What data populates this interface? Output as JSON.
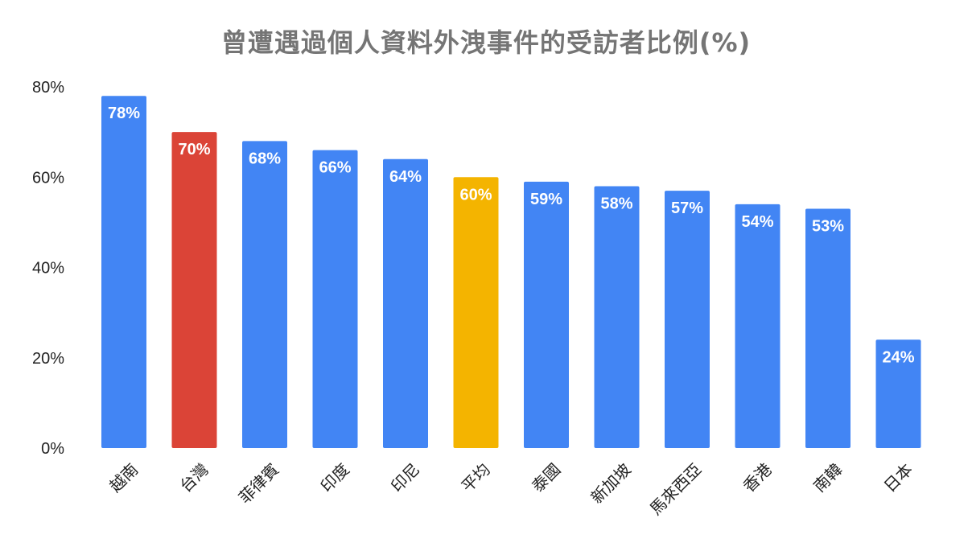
{
  "chart_data": {
    "type": "bar",
    "title": "曾遭遇過個人資料外洩事件的受訪者比例(%)",
    "xlabel": "",
    "ylabel": "",
    "categories": [
      "越南",
      "台灣",
      "菲律賓",
      "印度",
      "印尼",
      "平均",
      "泰國",
      "新加坡",
      "馬來西亞",
      "香港",
      "南韓",
      "日本"
    ],
    "values": [
      78,
      70,
      68,
      66,
      64,
      60,
      59,
      58,
      57,
      54,
      53,
      24
    ],
    "data_labels": [
      "78%",
      "70%",
      "68%",
      "66%",
      "64%",
      "60%",
      "59%",
      "58%",
      "57%",
      "54%",
      "53%",
      "24%"
    ],
    "bar_colors": [
      "#4285F4",
      "#DB4437",
      "#4285F4",
      "#4285F4",
      "#4285F4",
      "#F4B400",
      "#4285F4",
      "#4285F4",
      "#4285F4",
      "#4285F4",
      "#4285F4",
      "#4285F4"
    ],
    "ylim": [
      0,
      80
    ],
    "yticks": [
      0,
      20,
      40,
      60,
      80
    ],
    "ytick_labels": [
      "0%",
      "20%",
      "40%",
      "60%",
      "80%"
    ],
    "grid": false,
    "legend": "none"
  }
}
